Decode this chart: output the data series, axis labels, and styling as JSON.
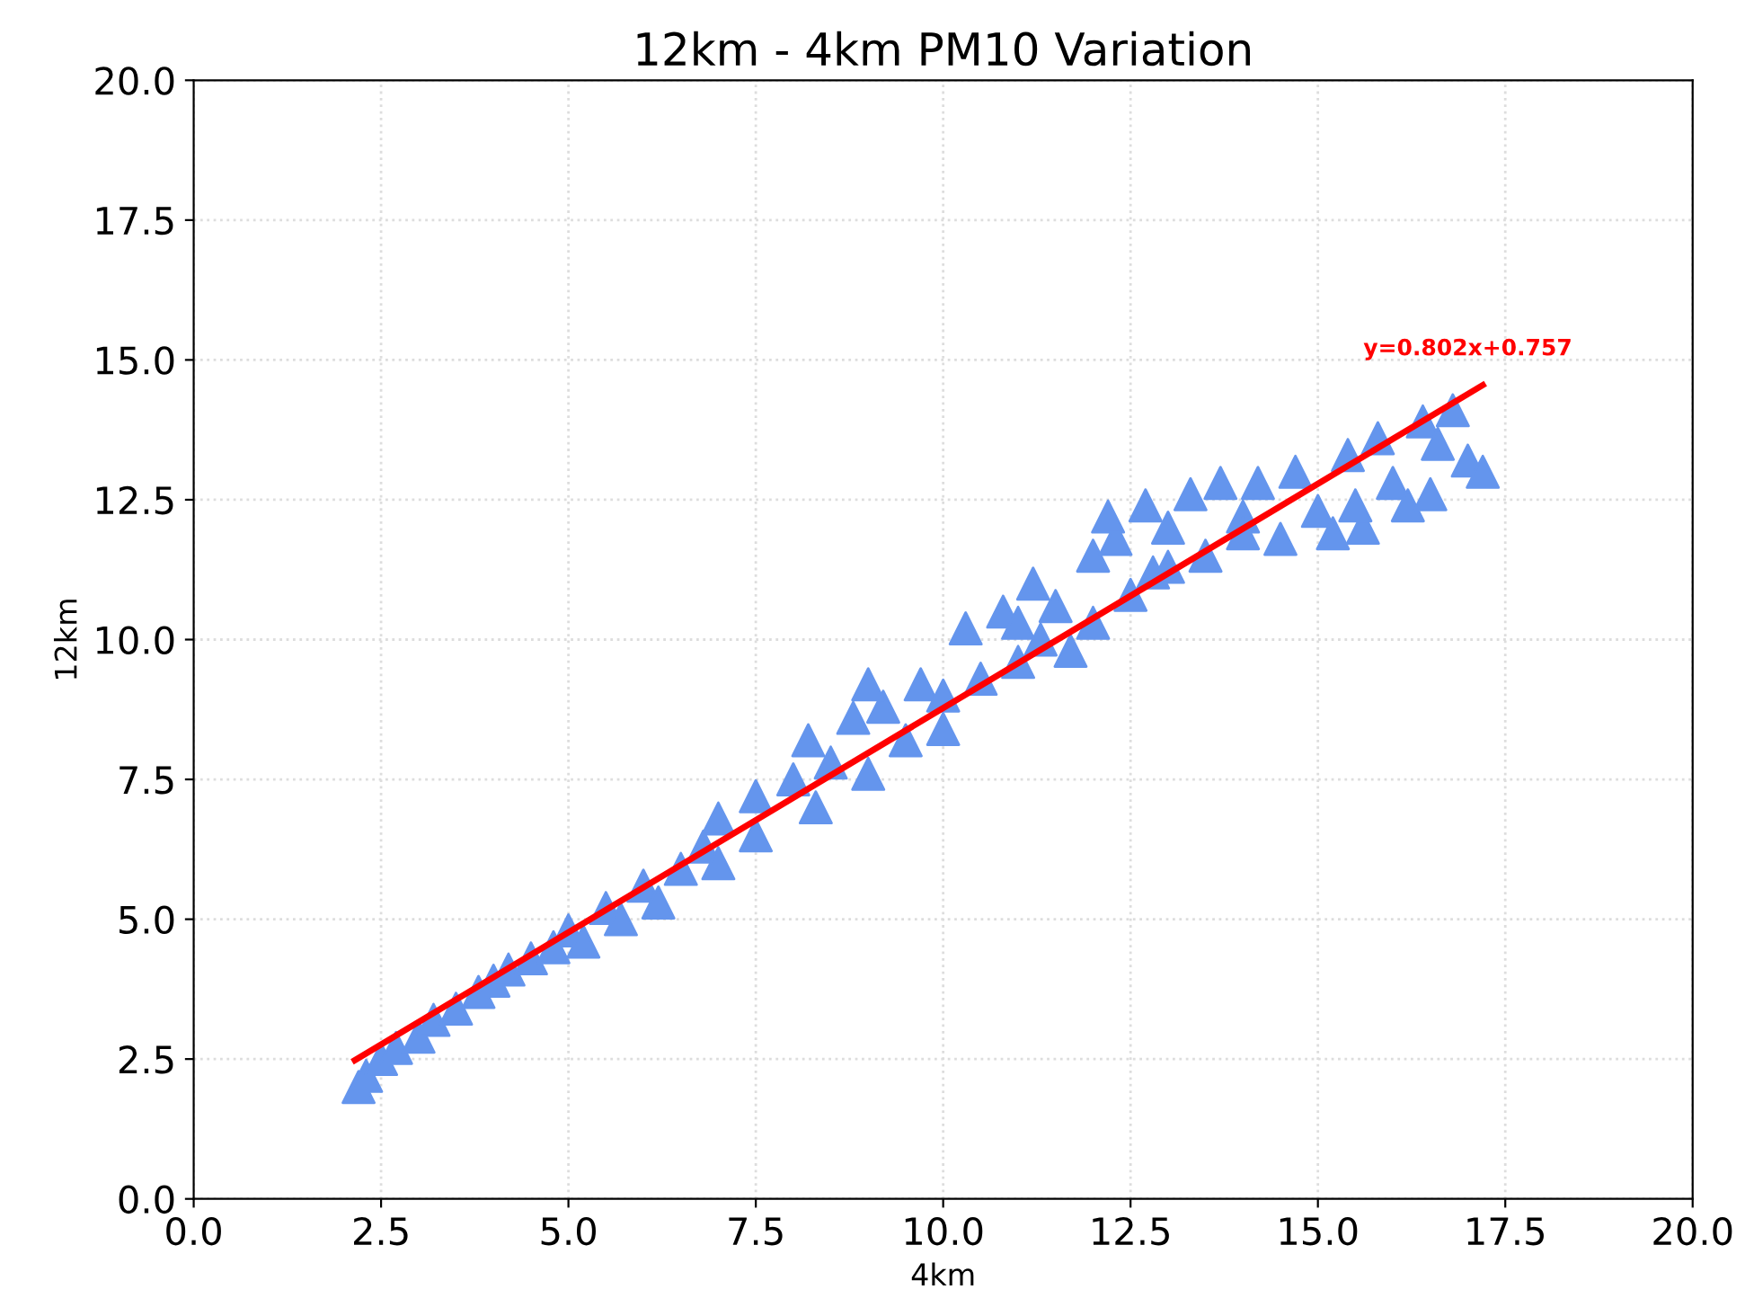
{
  "chart_data": {
    "type": "scatter",
    "title": "12km - 4km PM10 Variation",
    "xlabel": "4km",
    "ylabel": "12km",
    "xlim": [
      0,
      20
    ],
    "ylim": [
      0,
      20
    ],
    "xticks": [
      {
        "value": 0,
        "label": "0.0"
      },
      {
        "value": 2.5,
        "label": "2.5"
      },
      {
        "value": 5,
        "label": "5.0"
      },
      {
        "value": 7.5,
        "label": "7.5"
      },
      {
        "value": 10,
        "label": "10.0"
      },
      {
        "value": 12.5,
        "label": "12.5"
      },
      {
        "value": 15,
        "label": "15.0"
      },
      {
        "value": 17.5,
        "label": "17.5"
      },
      {
        "value": 20,
        "label": "20.0"
      }
    ],
    "yticks": [
      {
        "value": 0,
        "label": "0.0"
      },
      {
        "value": 2.5,
        "label": "2.5"
      },
      {
        "value": 5,
        "label": "5.0"
      },
      {
        "value": 7.5,
        "label": "7.5"
      },
      {
        "value": 10,
        "label": "10.0"
      },
      {
        "value": 12.5,
        "label": "12.5"
      },
      {
        "value": 15,
        "label": "15.0"
      },
      {
        "value": 17.5,
        "label": "17.5"
      },
      {
        "value": 20,
        "label": "20.0"
      }
    ],
    "grid": true,
    "annotations": [
      {
        "text": "y=0.802x+0.757",
        "x": 17.2,
        "y": 14.55
      }
    ],
    "series": [
      {
        "marker": "triangle",
        "color": "#6495ed",
        "x": [
          2.2,
          2.3,
          2.5,
          2.7,
          3.0,
          3.2,
          3.5,
          3.8,
          4.0,
          4.2,
          4.5,
          4.8,
          5.0,
          5.2,
          5.5,
          5.7,
          6.0,
          6.2,
          6.5,
          6.8,
          7.0,
          7.0,
          7.5,
          7.5,
          8.0,
          8.2,
          8.3,
          8.5,
          8.8,
          9.0,
          9.2,
          9.5,
          9.7,
          10.0,
          10.0,
          10.3,
          10.5,
          10.8,
          11.0,
          11.2,
          11.3,
          11.5,
          11.7,
          12.0,
          12.0,
          12.3,
          12.5,
          12.7,
          12.8,
          13.0,
          13.3,
          13.5,
          13.7,
          14.0,
          14.2,
          14.5,
          14.7,
          15.0,
          15.2,
          15.4,
          15.6,
          15.8,
          16.0,
          16.2,
          16.4,
          16.6,
          16.8,
          17.0,
          17.2,
          16.5,
          15.5,
          14.0,
          13.0,
          12.2,
          11.0,
          9.0
        ],
        "values": [
          2.0,
          2.2,
          2.5,
          2.7,
          2.9,
          3.2,
          3.4,
          3.7,
          3.9,
          4.1,
          4.3,
          4.5,
          4.8,
          4.6,
          5.2,
          5.0,
          5.6,
          5.3,
          5.9,
          6.3,
          6.8,
          6.0,
          7.2,
          6.5,
          7.5,
          8.2,
          7.0,
          7.8,
          8.6,
          7.6,
          8.8,
          8.2,
          9.2,
          8.4,
          9.0,
          10.2,
          9.3,
          10.5,
          9.6,
          11.0,
          10.0,
          10.6,
          9.8,
          11.5,
          10.3,
          11.8,
          10.8,
          12.4,
          11.2,
          12.0,
          12.6,
          11.5,
          12.8,
          12.2,
          12.8,
          11.8,
          13.0,
          12.3,
          11.9,
          13.3,
          12.0,
          13.6,
          12.8,
          12.4,
          13.9,
          13.5,
          14.1,
          13.2,
          13.0,
          12.6,
          12.4,
          11.9,
          11.3,
          12.2,
          10.3,
          9.2
        ]
      },
      {
        "type": "line",
        "color": "#ff0000",
        "x": [
          2.15,
          17.2
        ],
        "values": [
          2.48,
          14.55
        ]
      }
    ]
  }
}
